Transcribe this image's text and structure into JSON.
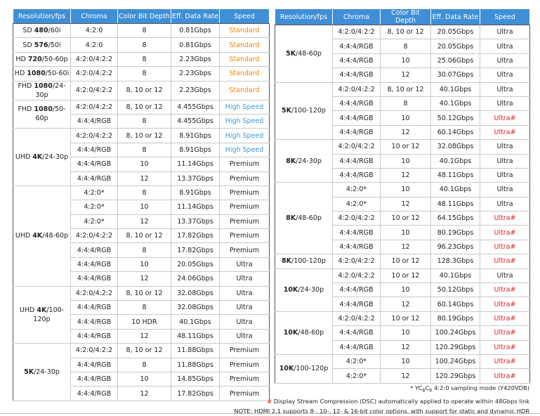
{
  "speed_colors": {
    "Standard": "#e8861a",
    "High Speed": "#3a9ad9",
    "Ultra#": "#e0201c"
  },
  "header_color": "#3f8fd6",
  "left_table": {
    "header": [
      "Resolution/fps",
      "Chroma",
      "Color Bit Depth",
      "Eff. Data Rate",
      "Speed"
    ],
    "groups": [
      {
        "resolution": [
          {
            "text": "SD "
          },
          {
            "text": "480",
            "bold": true
          },
          {
            "text": "/60i"
          }
        ],
        "rows": [
          [
            "4:2:0",
            "8",
            "0.81Gbps",
            "Standard"
          ]
        ]
      },
      {
        "resolution": [
          {
            "text": "SD "
          },
          {
            "text": "576",
            "bold": true
          },
          {
            "text": "/50i"
          }
        ],
        "rows": [
          [
            "4:2:0",
            "8",
            "0.81Gbps",
            "Standard"
          ]
        ]
      },
      {
        "resolution": [
          {
            "text": "HD "
          },
          {
            "text": "720",
            "bold": true
          },
          {
            "text": "/50-60p"
          }
        ],
        "rows": [
          [
            "4:2:0/4:2:2",
            "8",
            "2.23Gbps",
            "Standard"
          ]
        ]
      },
      {
        "resolution": [
          {
            "text": "HD "
          },
          {
            "text": "1080",
            "bold": true
          },
          {
            "text": "/50-60i"
          }
        ],
        "rows": [
          [
            "4:2:0/4:2:2",
            "8",
            "2.23Gbps",
            "Standard"
          ]
        ]
      },
      {
        "resolution": [
          {
            "text": "FHD "
          },
          {
            "text": "1080",
            "bold": true
          },
          {
            "text": "/24-30p"
          }
        ],
        "rows": [
          [
            "4:2:0/4:2:2",
            "8, 10 or 12",
            "2.23Gbps",
            "Standard"
          ]
        ]
      },
      {
        "resolution": [
          {
            "text": "FHD "
          },
          {
            "text": "1080",
            "bold": true
          },
          {
            "text": "/50-60p"
          }
        ],
        "rows": [
          [
            "4:2:0/4:2:2",
            "8, 10 or 12",
            "4.455Gbps",
            "High Speed"
          ],
          [
            "4:4:4/RGB",
            "8",
            "4.455Gbps",
            "High Speed"
          ]
        ]
      },
      {
        "resolution": [
          {
            "text": "UHD "
          },
          {
            "text": "4K",
            "bold": true
          },
          {
            "text": "/24-30p"
          }
        ],
        "rows": [
          [
            "4:2:0/4:2:2",
            "8, 10 or 12",
            "8.91Gbps",
            "High Speed"
          ],
          [
            "4:4:4/RGB",
            "8",
            "8.91Gbps",
            "High Speed"
          ],
          [
            "4:4:4/RGB",
            "10",
            "11.14Gbps",
            "Premium"
          ],
          [
            "4:4:4/RGB",
            "12",
            "13.37Gbps",
            "Premium"
          ]
        ]
      },
      {
        "resolution": [
          {
            "text": "UHD "
          },
          {
            "text": "4K",
            "bold": true
          },
          {
            "text": "/48-60p"
          }
        ],
        "rows": [
          [
            "4:2:0*",
            "8",
            "8.91Gbps",
            "Premium"
          ],
          [
            "4:2:0*",
            "10",
            "11.14Gbps",
            "Premium"
          ],
          [
            "4:2:0*",
            "12",
            "13.37Gbps",
            "Premium"
          ],
          [
            "4:2:0/4:2:2",
            "8, 10 or 12",
            "17.82Gbps",
            "Premium"
          ],
          [
            "4:4:4/RGB",
            "8",
            "17.82Gbps",
            "Premium"
          ],
          [
            "4:4:4/RGB",
            "10",
            "20.05Gbps",
            "Ultra"
          ],
          [
            "4:4:4/RGB",
            "12",
            "24.06Gbps",
            "Ultra"
          ]
        ]
      },
      {
        "resolution": [
          {
            "text": "UHD "
          },
          {
            "text": "4K",
            "bold": true
          },
          {
            "text": "/100-120p"
          }
        ],
        "rows": [
          [
            "4:2:0/4:2:2",
            "8, 10 or 12",
            "32.08Gbps",
            "Ultra"
          ],
          [
            "4:4:4/RGB",
            "8",
            "32.08Gbps",
            "Ultra"
          ],
          [
            "4:4:4/RGB",
            "10 HDR",
            "40.1Gbps",
            "Ultra"
          ],
          [
            "4:4:4/RGB",
            "12",
            "48.11Gbps",
            "Ultra"
          ]
        ]
      },
      {
        "resolution": [
          {
            "text": "5K",
            "bold": true
          },
          {
            "text": "/24-30p"
          }
        ],
        "rows": [
          [
            "4:2:0/4:2:2",
            "8, 10 or 12",
            "11.88Gbps",
            "Premium"
          ],
          [
            "4:4:4/RGB",
            "8",
            "11.88Gbps",
            "Premium"
          ],
          [
            "4:4:4/RGB",
            "10",
            "14.85Gbps",
            "Premium"
          ],
          [
            "4:4:4/RGB",
            "12",
            "17.82Gbps",
            "Premium"
          ]
        ]
      }
    ]
  },
  "right_table": {
    "header": [
      "Resolution/fps",
      "Chroma",
      "Color Bit Depth",
      "Eff. Data Rate",
      "Speed"
    ],
    "groups": [
      {
        "resolution": [
          {
            "text": "5K",
            "bold": true
          },
          {
            "text": "/48-60p"
          }
        ],
        "rows": [
          [
            "4:2:0/4:2:2",
            "8, 10 or 12",
            "20.05Gbps",
            "Ultra"
          ],
          [
            "4:4:4/RGB",
            "8",
            "20.05Gbps",
            "Ultra"
          ],
          [
            "4:4:4/RGB",
            "10",
            "25.06Gbps",
            "Ultra"
          ],
          [
            "4:4:4/RGB",
            "12",
            "30.07Gbps",
            "Ultra"
          ]
        ]
      },
      {
        "resolution": [
          {
            "text": "5K",
            "bold": true
          },
          {
            "text": "/100-120p"
          }
        ],
        "rows": [
          [
            "4:2:0/4:2:2",
            "8, 10 or 12",
            "40.1Gbps",
            "Ultra"
          ],
          [
            "4:4:4/RGB",
            "8",
            "40.1Gbps",
            "Ultra"
          ],
          [
            "4:4:4/RGB",
            "10",
            "50.12Gbps",
            "Ultra#"
          ],
          [
            "4:4:4/RGB",
            "12",
            "60.14Gbps",
            "Ultra#"
          ]
        ]
      },
      {
        "resolution": [
          {
            "text": "8K",
            "bold": true
          },
          {
            "text": "/24-30p"
          }
        ],
        "rows": [
          [
            "4:2:0/4:2:2",
            "10 or 12",
            "32.08Gbps",
            "Ultra"
          ],
          [
            "4:4:4/RGB",
            "10",
            "40.1Gbps",
            "Ultra"
          ],
          [
            "4:4:4/RGB",
            "12",
            "48.11Gbps",
            "Ultra"
          ]
        ]
      },
      {
        "resolution": [
          {
            "text": "8K",
            "bold": true
          },
          {
            "text": "/48-60p"
          }
        ],
        "rows": [
          [
            "4:2:0*",
            "10",
            "40.1Gbps",
            "Ultra"
          ],
          [
            "4:2:0*",
            "12",
            "48.11Gbps",
            "Ultra"
          ],
          [
            "4:2:0/4:2:2",
            "10 or 12",
            "64.15Gbps",
            "Ultra#"
          ],
          [
            "4:4:4/RGB",
            "10",
            "80.19Gbps",
            "Ultra#"
          ],
          [
            "4:4:4/RGB",
            "12",
            "96.23Gbps",
            "Ultra#"
          ]
        ]
      },
      {
        "resolution": [
          {
            "text": "8K",
            "bold": true
          },
          {
            "text": "/100-120p"
          }
        ],
        "rows": [
          [
            "4:2:0/4:2:2",
            "10 or 12",
            "128.3Gbps",
            "Ultra#"
          ]
        ]
      },
      {
        "resolution": [
          {
            "text": "10K",
            "bold": true
          },
          {
            "text": "/24-30p"
          }
        ],
        "rows": [
          [
            "4:2:0/4:2:2",
            "10 or 12",
            "40.1Gbps",
            "Ultra"
          ],
          [
            "4:4:4/RGB",
            "10",
            "50.12Gbps",
            "Ultra#"
          ],
          [
            "4:4:4/RGB",
            "12",
            "60.14Gbps",
            "Ultra#"
          ]
        ]
      },
      {
        "resolution": [
          {
            "text": "10K",
            "bold": true
          },
          {
            "text": "/48-60p"
          }
        ],
        "rows": [
          [
            "4:2:0/4:2:2",
            "10 or 12",
            "80.19Gbps",
            "Ultra#"
          ],
          [
            "4:4:4/RGB",
            "10",
            "100.24Gbps",
            "Ultra#"
          ],
          [
            "4:4:4/RGB",
            "12",
            "120.29Gbps",
            "Ultra#"
          ]
        ]
      },
      {
        "resolution": [
          {
            "text": "10K",
            "bold": true
          },
          {
            "text": "/100-120p"
          }
        ],
        "rows": [
          [
            "4:2:0*",
            "10",
            "100.24Gbps",
            "Ultra#"
          ],
          [
            "4:2:0*",
            "12",
            "120.29Gbps",
            "Ultra#"
          ]
        ]
      }
    ]
  },
  "footnotes": [
    [
      {
        "text": "* YC"
      },
      {
        "text": "B",
        "sub": true
      },
      {
        "text": "C"
      },
      {
        "text": "R",
        "sub": true
      },
      {
        "text": " 4:2:0 sampling mode (Y420VDB)"
      }
    ],
    [
      {
        "text": "#",
        "color": "#e0201c"
      },
      {
        "text": " Display Stream Compression (DSC) automatically applied to operate within 48Gbps link"
      }
    ],
    [
      {
        "text": "NOTE: HDMI 2.1 supports 8-, 10-, 12- & 16-bit color options, with support for static and dynamic HDR"
      }
    ]
  ]
}
